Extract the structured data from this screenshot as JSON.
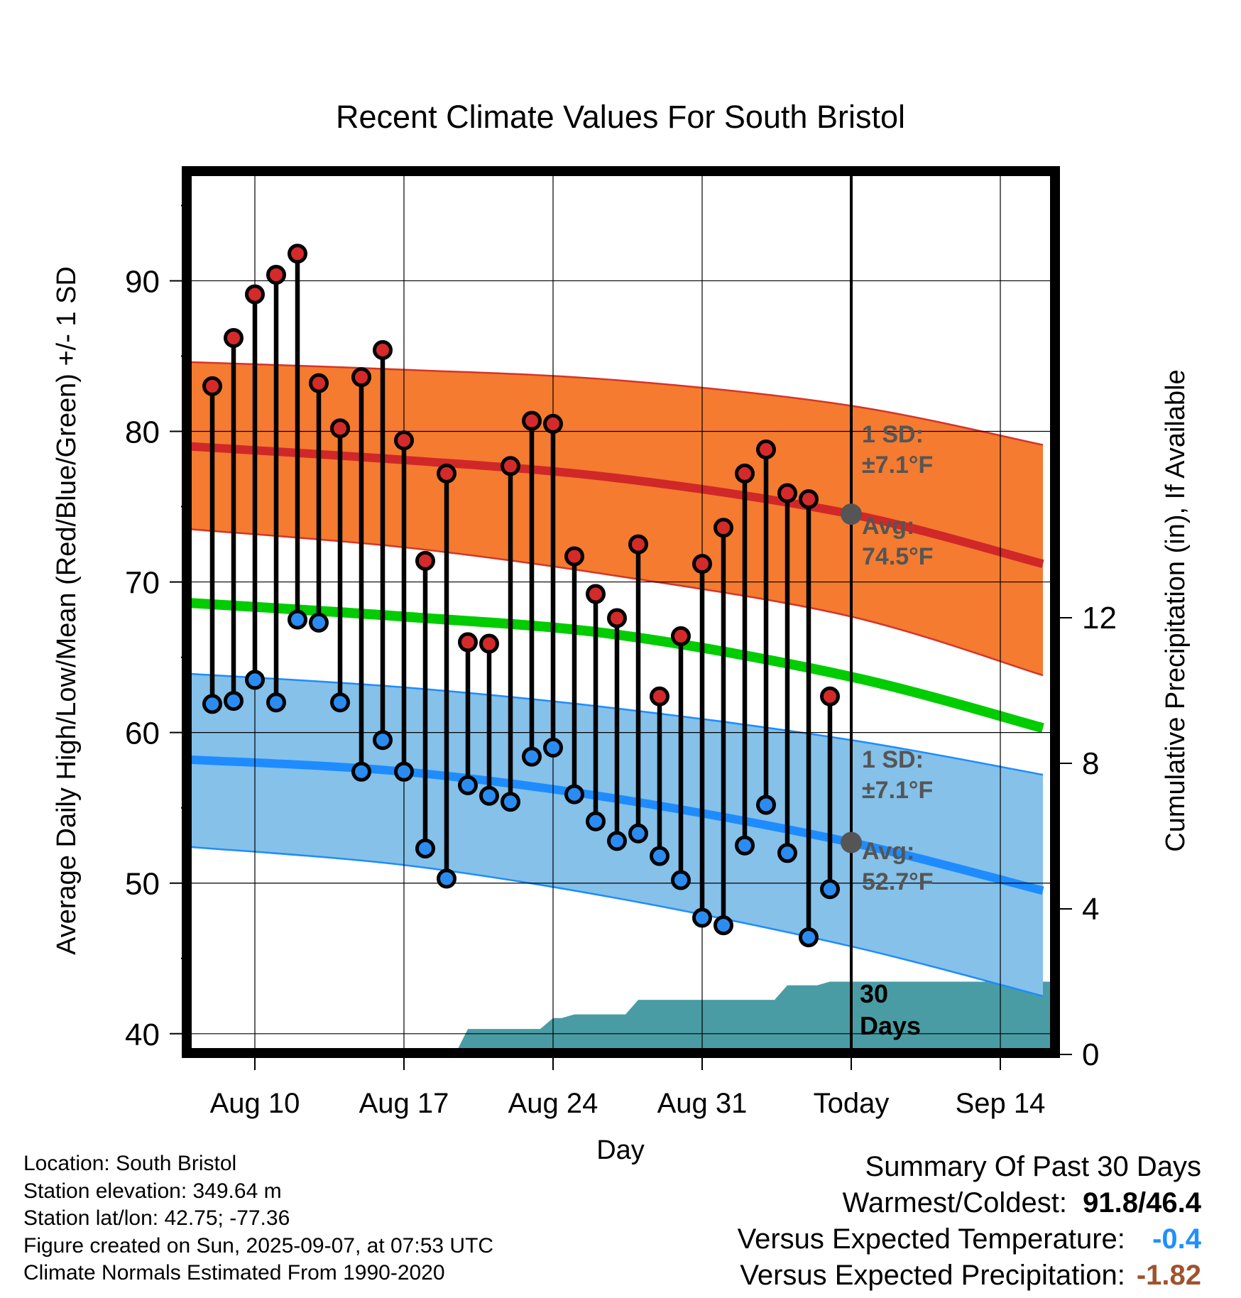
{
  "chart_data": {
    "type": "line",
    "title": "Recent Climate Values For South Bristol",
    "xlabel": "Day",
    "ylabel": "Average Daily High/Low/Mean (Red/Blue/Green) +/- 1 SD",
    "y2label": "Cumulative Precipitation (in), If Available",
    "x_ticks": [
      "Aug 10",
      "Aug 17",
      "Aug 24",
      "Aug 31",
      "Today",
      "Sep 14"
    ],
    "y_ticks": [
      40,
      50,
      60,
      70,
      80,
      90
    ],
    "y2_ticks": [
      0,
      4,
      8,
      12
    ],
    "ylim": [
      39,
      97
    ],
    "y2lim": [
      0,
      24
    ],
    "xlim": [
      "2025-08-07",
      "2025-09-16"
    ],
    "today": "2025-09-07",
    "grid": true,
    "colors": {
      "high_band": "#f47b30",
      "high_band_edge": "#d4352a",
      "high_avg": "#d02828",
      "mean_avg": "#00cc00",
      "low_band": "#85c1e9",
      "low_band_edge": "#1e8cff",
      "low_avg": "#1e8cff",
      "precip": "#4a9ca4",
      "today_marker": "#555555",
      "high_dot": "#d42a2a",
      "low_dot": "#2a8cf0",
      "dep_temp": "#1e90ff",
      "dep_precip": "#a0522d"
    },
    "dates": [
      "2025-08-08",
      "2025-08-09",
      "2025-08-10",
      "2025-08-11",
      "2025-08-12",
      "2025-08-13",
      "2025-08-14",
      "2025-08-15",
      "2025-08-16",
      "2025-08-17",
      "2025-08-18",
      "2025-08-19",
      "2025-08-20",
      "2025-08-21",
      "2025-08-22",
      "2025-08-23",
      "2025-08-24",
      "2025-08-25",
      "2025-08-26",
      "2025-08-27",
      "2025-08-28",
      "2025-08-29",
      "2025-08-30",
      "2025-08-31",
      "2025-09-01",
      "2025-09-02",
      "2025-09-03",
      "2025-09-04",
      "2025-09-05",
      "2025-09-06"
    ],
    "series": [
      {
        "name": "High",
        "values": [
          83.0,
          86.2,
          89.1,
          90.4,
          91.8,
          83.2,
          80.2,
          83.6,
          85.4,
          79.4,
          71.4,
          77.2,
          66.0,
          65.9,
          77.7,
          80.7,
          80.5,
          71.7,
          69.2,
          67.6,
          72.5,
          62.4,
          66.4,
          71.2,
          73.6,
          77.2,
          78.8,
          75.9,
          75.5,
          62.4
        ]
      },
      {
        "name": "Low",
        "values": [
          61.9,
          62.1,
          63.5,
          62.0,
          67.5,
          67.3,
          62.0,
          57.4,
          59.5,
          57.4,
          52.3,
          50.3,
          56.5,
          55.8,
          55.4,
          58.4,
          59.0,
          55.9,
          54.1,
          52.8,
          53.3,
          51.8,
          50.2,
          47.7,
          47.2,
          52.5,
          55.2,
          52.0,
          46.4,
          49.6
        ]
      }
    ],
    "normals": {
      "dates": [
        "2025-08-07",
        "2025-08-17",
        "2025-08-27",
        "2025-09-07",
        "2025-09-16"
      ],
      "high_avg": [
        79.0,
        78.1,
        76.9,
        74.5,
        71.2
      ],
      "high_sd_upper": [
        84.6,
        84.1,
        83.4,
        81.7,
        79.1
      ],
      "high_sd_lower": [
        73.5,
        72.3,
        70.4,
        67.7,
        63.8
      ],
      "mean_avg": [
        68.6,
        67.7,
        66.5,
        63.7,
        60.3
      ],
      "low_avg": [
        58.2,
        57.4,
        55.6,
        52.7,
        49.5
      ],
      "low_sd_upper": [
        63.9,
        63.0,
        61.6,
        59.5,
        57.2
      ],
      "low_sd_lower": [
        52.4,
        51.2,
        49.0,
        45.8,
        42.5
      ]
    },
    "precip_cumulative": {
      "dates": [
        "2025-08-19",
        "2025-08-20",
        "2025-08-23",
        "2025-08-24",
        "2025-08-25",
        "2025-08-27",
        "2025-08-28",
        "2025-09-03",
        "2025-09-04",
        "2025-09-05",
        "2025-09-06",
        "2025-09-16"
      ],
      "values": [
        0.0,
        0.7,
        0.7,
        1.0,
        1.1,
        1.1,
        1.5,
        1.5,
        1.9,
        1.9,
        2.0,
        2.0
      ]
    },
    "annotations": {
      "high_sd_label": "1 SD:",
      "high_sd_value": "±7.1°F",
      "high_avg_label": "Avg:",
      "high_avg_value": "74.5°F",
      "low_sd_label": "1 SD:",
      "low_sd_value": "±7.1°F",
      "low_avg_label": "Avg:",
      "low_avg_value": "52.7°F",
      "precip_label_1": "30",
      "precip_label_2": "Days"
    }
  },
  "info": {
    "location": "Location: South Bristol",
    "elevation": "Station elevation: 349.64 m",
    "latlon": "Station lat/lon: 42.75; -77.36",
    "created": "Figure created on Sun, 2025-09-07, at 07:53 UTC",
    "normals": "Climate Normals Estimated From 1990-2020"
  },
  "summary": {
    "title": "Summary Of Past 30 Days",
    "warm_cold_label": "Warmest/Coldest:",
    "warm_cold_value": "91.8/46.4",
    "temp_label": "Versus Expected Temperature:",
    "temp_value": "-0.4",
    "precip_label": "Versus Expected Precipitation:",
    "precip_value": "-1.82"
  }
}
